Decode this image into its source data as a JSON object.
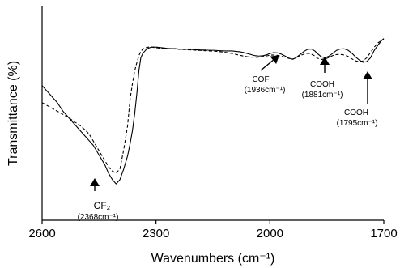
{
  "chart_data": {
    "type": "line",
    "title": "",
    "xlabel": "Wavenumbers (cm⁻¹)",
    "ylabel": "Transmittance (%)",
    "xlim": [
      2600,
      1700
    ],
    "x_reversed": true,
    "ylim": [
      0,
      100
    ],
    "y_ticks_shown": false,
    "grid": false,
    "x_ticks": [
      "2600",
      "2300",
      "2000",
      "1700"
    ],
    "series": [
      {
        "style": "solid",
        "x": [
          2600,
          2590,
          2575,
          2560,
          2545,
          2530,
          2515,
          2505,
          2495,
          2485,
          2475,
          2465,
          2455,
          2445,
          2435,
          2425,
          2415,
          2405,
          2395,
          2385,
          2375,
          2368,
          2362,
          2356,
          2350,
          2345,
          2340,
          2335,
          2330,
          2325,
          2320,
          2315,
          2310,
          2305,
          2300,
          2290,
          2280,
          2270,
          2260,
          2250,
          2240,
          2230,
          2220,
          2210,
          2200,
          2190,
          2180,
          2170,
          2160,
          2150,
          2140,
          2130,
          2120,
          2110,
          2100,
          2090,
          2080,
          2070,
          2060,
          2050,
          2040,
          2030,
          2020,
          2010,
          2000,
          1990,
          1980,
          1970,
          1960,
          1950,
          1940,
          1936,
          1930,
          1920,
          1910,
          1900,
          1890,
          1881,
          1875,
          1865,
          1855,
          1845,
          1835,
          1825,
          1815,
          1805,
          1795,
          1785,
          1775,
          1765,
          1755,
          1745,
          1735,
          1725,
          1715,
          1705,
          1700
        ],
        "y": [
          63,
          61,
          58,
          55,
          51,
          48,
          45,
          43,
          41,
          39,
          37,
          35,
          32,
          29,
          26,
          22,
          19,
          17,
          19,
          24,
          30,
          36,
          42,
          50,
          60,
          70,
          76,
          78,
          79,
          80,
          80.5,
          80.8,
          81,
          81,
          81,
          80.8,
          80.6,
          80.4,
          80.3,
          80.3,
          80.1,
          80,
          80,
          79.9,
          79.8,
          79.7,
          79.6,
          79.6,
          79.5,
          79.5,
          79.4,
          79.3,
          79.2,
          79.2,
          79.2,
          79,
          78.8,
          78.5,
          78,
          77.5,
          77,
          76.8,
          76.9,
          77.3,
          78,
          78.4,
          78.3,
          77.7,
          76.8,
          75.8,
          75.3,
          75.6,
          76.2,
          77.6,
          79,
          80,
          80.1,
          79.1,
          78,
          76.5,
          76,
          76.7,
          78,
          79.4,
          80.1,
          80.2,
          79.6,
          78.3,
          76.5,
          75,
          73.9,
          74.2,
          76,
          79.5,
          82,
          84.2,
          85
        ]
      },
      {
        "style": "dashed",
        "x": [
          2600,
          2590,
          2575,
          2560,
          2545,
          2530,
          2515,
          2505,
          2495,
          2485,
          2475,
          2465,
          2455,
          2445,
          2435,
          2425,
          2415,
          2405,
          2395,
          2385,
          2375,
          2368,
          2362,
          2356,
          2350,
          2345,
          2340,
          2335,
          2330,
          2325,
          2320,
          2315,
          2310,
          2305,
          2300,
          2290,
          2280,
          2270,
          2260,
          2250,
          2240,
          2230,
          2220,
          2210,
          2200,
          2190,
          2180,
          2170,
          2160,
          2150,
          2140,
          2130,
          2120,
          2110,
          2100,
          2090,
          2080,
          2070,
          2060,
          2050,
          2040,
          2030,
          2020,
          2010,
          2000,
          1990,
          1980,
          1970,
          1960,
          1950,
          1940,
          1936,
          1930,
          1920,
          1910,
          1900,
          1890,
          1881,
          1875,
          1865,
          1855,
          1845,
          1835,
          1825,
          1815,
          1805,
          1795,
          1785,
          1775,
          1765,
          1755,
          1745,
          1735,
          1725,
          1715,
          1705,
          1700
        ],
        "y": [
          55,
          54,
          52.5,
          51,
          49.5,
          48,
          46,
          45,
          43.5,
          42,
          40,
          37,
          34,
          31,
          28,
          25,
          23,
          22,
          24,
          33,
          44,
          57,
          64,
          70,
          74,
          77,
          79,
          80,
          80.5,
          80.8,
          81,
          81,
          81,
          80.8,
          80.7,
          80.5,
          80.3,
          80.2,
          80.2,
          80.1,
          80,
          79.9,
          79.8,
          79.7,
          79.6,
          79.5,
          79.4,
          79.3,
          79.2,
          79.1,
          79,
          78.8,
          78.6,
          78.3,
          78,
          77.6,
          77.2,
          76.8,
          76.5,
          76.3,
          76.2,
          76.3,
          76.5,
          76.8,
          77.2,
          77.3,
          77.1,
          76.7,
          76.2,
          75.7,
          75.4,
          75.6,
          76.1,
          77.1,
          77.7,
          78.1,
          77.6,
          76.8,
          75.8,
          75.2,
          75.4,
          76.1,
          77,
          77.5,
          77.6,
          77.3,
          76.7,
          75.6,
          74.6,
          74.1,
          74.5,
          76,
          78.5,
          81,
          83,
          84.2,
          84.8
        ]
      }
    ],
    "annotations": [
      {
        "label": "CF₂",
        "detail": "(2368cm⁻¹)",
        "x": 2368
      },
      {
        "label": "COF",
        "detail": "(1936cm⁻¹)",
        "x": 1936
      },
      {
        "label": "COOH",
        "detail": "(1881cm⁻¹)",
        "x": 1881
      },
      {
        "label": "COOH",
        "detail": "(1795cm⁻¹)",
        "x": 1795
      }
    ]
  }
}
